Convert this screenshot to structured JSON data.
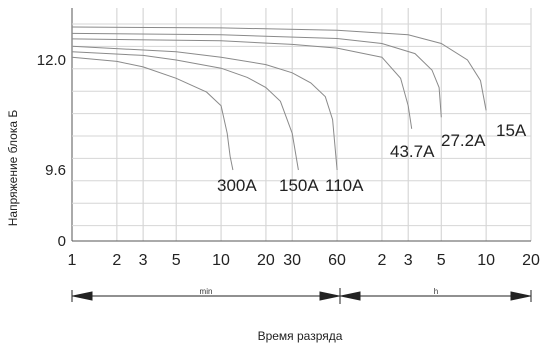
{
  "chart_data": {
    "type": "line",
    "title": "",
    "xlabel": "Время разряда",
    "ylabel": "Напряжение блока Б",
    "x_scale": "log",
    "x_unit_minutes": "min",
    "x_unit_hours": "h",
    "x_ticks": [
      {
        "label": "1",
        "minutes": 1
      },
      {
        "label": "2",
        "minutes": 2
      },
      {
        "label": "3",
        "minutes": 3
      },
      {
        "label": "5",
        "minutes": 5
      },
      {
        "label": "10",
        "minutes": 10
      },
      {
        "label": "20",
        "minutes": 20
      },
      {
        "label": "30",
        "minutes": 30
      },
      {
        "label": "60",
        "minutes": 60
      },
      {
        "label": "2",
        "minutes": 120
      },
      {
        "label": "3",
        "minutes": 180
      },
      {
        "label": "5",
        "minutes": 300
      },
      {
        "label": "10",
        "minutes": 600
      },
      {
        "label": "20",
        "minutes": 1200
      }
    ],
    "y_ticks": [
      {
        "label": "0",
        "value": 0
      },
      {
        "label": "9.6",
        "value": 9.6
      },
      {
        "label": "12.0",
        "value": 12.0
      }
    ],
    "grid": true,
    "series": [
      {
        "name": "300A",
        "label_text": "300A",
        "points": [
          [
            1,
            12.06
          ],
          [
            2,
            11.97
          ],
          [
            3,
            11.85
          ],
          [
            5,
            11.6
          ],
          [
            8,
            11.3
          ],
          [
            10,
            11.0
          ],
          [
            11,
            10.4
          ],
          [
            11.5,
            9.9
          ],
          [
            12,
            9.6
          ]
        ]
      },
      {
        "name": "150A",
        "label_text": "150A",
        "points": [
          [
            1,
            12.18
          ],
          [
            3,
            12.1
          ],
          [
            5,
            12.0
          ],
          [
            10,
            11.82
          ],
          [
            15,
            11.62
          ],
          [
            20,
            11.4
          ],
          [
            25,
            11.1
          ],
          [
            30,
            10.4
          ],
          [
            33,
            9.6
          ]
        ]
      },
      {
        "name": "110A",
        "label_text": "110A",
        "points": [
          [
            1,
            12.3
          ],
          [
            5,
            12.18
          ],
          [
            10,
            12.06
          ],
          [
            20,
            11.9
          ],
          [
            30,
            11.72
          ],
          [
            40,
            11.5
          ],
          [
            50,
            11.2
          ],
          [
            56,
            10.7
          ],
          [
            60,
            9.6
          ]
        ]
      },
      {
        "name": "43.7A",
        "label_text": "43.7A",
        "points": [
          [
            1,
            12.46
          ],
          [
            10,
            12.42
          ],
          [
            30,
            12.34
          ],
          [
            60,
            12.26
          ],
          [
            120,
            12.06
          ],
          [
            160,
            11.6
          ],
          [
            180,
            11.0
          ],
          [
            190,
            10.5
          ]
        ]
      },
      {
        "name": "27.2A",
        "label_text": "27.2A",
        "points": [
          [
            1,
            12.58
          ],
          [
            10,
            12.55
          ],
          [
            60,
            12.47
          ],
          [
            120,
            12.36
          ],
          [
            200,
            12.14
          ],
          [
            260,
            11.78
          ],
          [
            290,
            11.4
          ],
          [
            300,
            10.75
          ]
        ]
      },
      {
        "name": "15A",
        "label_text": "15A",
        "points": [
          [
            1,
            12.72
          ],
          [
            10,
            12.7
          ],
          [
            60,
            12.65
          ],
          [
            180,
            12.55
          ],
          [
            300,
            12.36
          ],
          [
            450,
            12.0
          ],
          [
            550,
            11.55
          ],
          [
            600,
            10.9
          ]
        ]
      }
    ]
  }
}
